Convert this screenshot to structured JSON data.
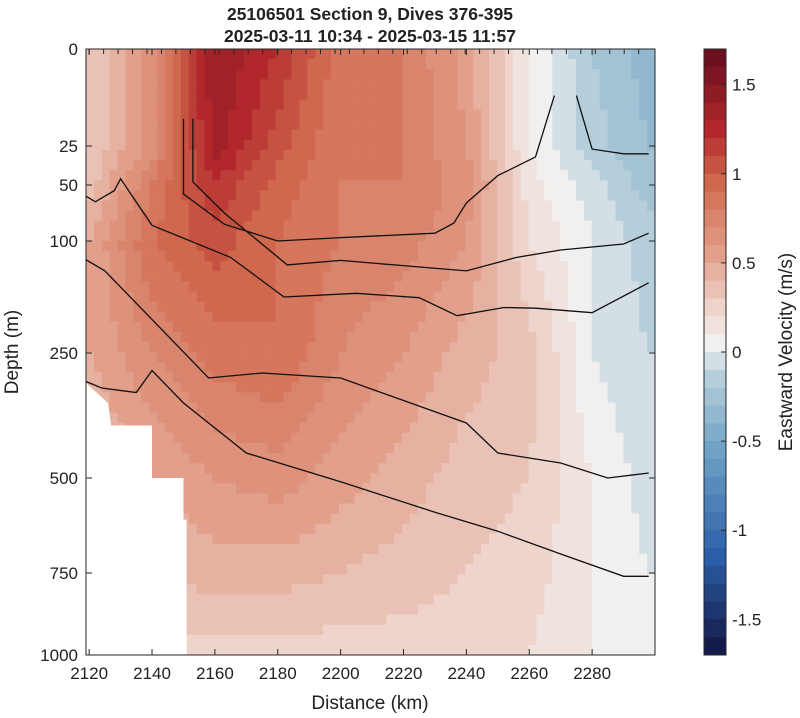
{
  "chart_data": {
    "type": "heatmap",
    "title": "25106501 Section 9, Dives 376-395",
    "subtitle": "2025-03-11 10:34 - 2025-03-15 11:57",
    "xlabel": "Distance (km)",
    "ylabel": "Depth (m)",
    "colorbar_label": "Eastward Velocity (m/s)",
    "xlim": [
      2119,
      2300
    ],
    "ylim": [
      0,
      1000
    ],
    "y_reversed": true,
    "y_scale": "piecewise (stretched near surface)",
    "x_ticks": [
      2120,
      2140,
      2160,
      2180,
      2200,
      2220,
      2240,
      2260,
      2280
    ],
    "y_ticks": [
      0,
      25,
      50,
      100,
      250,
      500,
      750,
      1000
    ],
    "clim": [
      -1.7,
      1.7
    ],
    "colorbar_ticks": [
      1.5,
      1,
      0.5,
      0,
      -0.5,
      -1,
      -1.5
    ],
    "colormap": "diverging blue-white-red",
    "colors": {
      "max": "#5a0a1c",
      "high": "#b2272b",
      "mid_pos": "#e6a08a",
      "zero": "#f2f0ee",
      "mid_neg": "#8fb9cf",
      "min": "#141b4a"
    },
    "x": [
      2120,
      2140,
      2160,
      2180,
      2200,
      2220,
      2240,
      2260,
      2280,
      2298
    ],
    "depths": [
      0,
      25,
      50,
      100,
      250,
      500,
      750,
      1000
    ],
    "values": [
      [
        0.25,
        0.6,
        1.35,
        1.15,
        0.8,
        0.75,
        0.5,
        0.05,
        -0.25,
        -0.4
      ],
      [
        0.25,
        0.6,
        1.3,
        1.0,
        0.75,
        0.75,
        0.55,
        0.05,
        -0.2,
        -0.35
      ],
      [
        0.3,
        0.75,
        1.15,
        0.9,
        0.75,
        0.75,
        0.6,
        0.1,
        -0.1,
        -0.3
      ],
      [
        0.45,
        0.85,
        1.0,
        0.85,
        0.75,
        0.7,
        0.55,
        0.15,
        -0.05,
        -0.2
      ],
      [
        0.45,
        0.65,
        0.8,
        0.85,
        0.65,
        0.55,
        0.4,
        0.3,
        -0.05,
        -0.15
      ],
      [
        0.3,
        0.45,
        0.55,
        0.6,
        0.5,
        0.4,
        0.3,
        0.25,
        0.05,
        -0.1
      ],
      [
        0.2,
        0.35,
        0.4,
        0.4,
        0.35,
        0.3,
        0.25,
        0.2,
        0.05,
        -0.05
      ],
      [
        0.1,
        0.2,
        0.2,
        0.2,
        0.2,
        0.2,
        0.2,
        0.15,
        0.05,
        0.0
      ]
    ],
    "bottom_mask_depth": [
      [
        2119,
        310
      ],
      [
        2126,
        350
      ],
      [
        2127,
        395
      ],
      [
        2140,
        395
      ],
      [
        2140,
        500
      ],
      [
        2150,
        500
      ],
      [
        2150,
        610
      ],
      [
        2151,
        610
      ],
      [
        2151,
        1000
      ]
    ],
    "contours": [
      [
        [
          2150,
          18
        ],
        [
          2150,
          58
        ],
        [
          2163,
          85
        ],
        [
          2180,
          100
        ],
        [
          2200,
          97
        ],
        [
          2230,
          93
        ],
        [
          2236,
          84
        ],
        [
          2240,
          66
        ],
        [
          2250,
          44
        ],
        [
          2262,
          32
        ],
        [
          2268,
          12
        ]
      ],
      [
        [
          2153,
          18
        ],
        [
          2153,
          48
        ],
        [
          2163,
          75
        ],
        [
          2183,
          132
        ],
        [
          2200,
          126
        ],
        [
          2217,
          132
        ],
        [
          2240,
          140
        ],
        [
          2256,
          122
        ],
        [
          2270,
          112
        ],
        [
          2290,
          104
        ],
        [
          2298,
          93
        ]
      ],
      [
        [
          2119,
          60
        ],
        [
          2122,
          65
        ],
        [
          2128,
          55
        ],
        [
          2130,
          46
        ],
        [
          2140,
          86
        ],
        [
          2165,
          122
        ],
        [
          2182,
          175
        ],
        [
          2205,
          170
        ],
        [
          2225,
          176
        ],
        [
          2237,
          200
        ],
        [
          2252,
          189
        ],
        [
          2262,
          190
        ],
        [
          2280,
          196
        ],
        [
          2298,
          156
        ]
      ],
      [
        [
          2119,
          125
        ],
        [
          2125,
          140
        ],
        [
          2140,
          205
        ],
        [
          2158,
          300
        ],
        [
          2175,
          290
        ],
        [
          2200,
          300
        ],
        [
          2240,
          390
        ],
        [
          2250,
          450
        ],
        [
          2270,
          470
        ],
        [
          2285,
          500
        ],
        [
          2298,
          490
        ]
      ],
      [
        [
          2119,
          307
        ],
        [
          2124,
          320
        ],
        [
          2135,
          329
        ],
        [
          2140,
          285
        ],
        [
          2150,
          350
        ],
        [
          2170,
          450
        ],
        [
          2200,
          510
        ],
        [
          2230,
          590
        ],
        [
          2250,
          640
        ],
        [
          2270,
          700
        ],
        [
          2290,
          760
        ],
        [
          2298,
          760
        ]
      ],
      [
        [
          2275,
          12
        ],
        [
          2280,
          27
        ],
        [
          2290,
          30
        ],
        [
          2298,
          30
        ]
      ]
    ]
  }
}
